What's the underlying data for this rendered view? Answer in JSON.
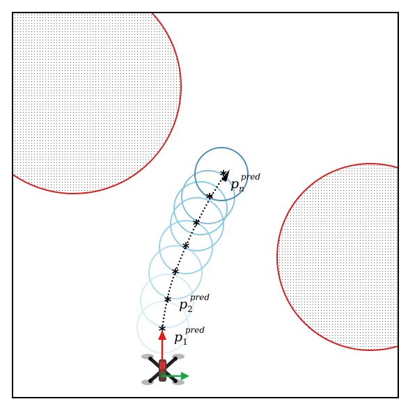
{
  "figure": {
    "labels": {
      "p1": {
        "base": "p",
        "sub": "1",
        "sup": "pred"
      },
      "p2": {
        "base": "p",
        "sub": "2",
        "sup": "pred"
      },
      "pn": {
        "base": "p",
        "sub": "n",
        "sup": "pred"
      }
    },
    "colors": {
      "obstacle_outline": "#d42020",
      "obstacle_fill_dots": "#333333",
      "frame": "#000000",
      "trajectory": "#000000",
      "circle_light": "#cfe9f2",
      "circle_mid": "#86cce3",
      "circle_dark": "#4a8fb5",
      "x_axis": "#e21b1b",
      "y_axis": "#19a64b"
    },
    "icons": {
      "drone": "quadrotor-drone-icon",
      "waypoint": "asterisk-marker-icon"
    }
  }
}
